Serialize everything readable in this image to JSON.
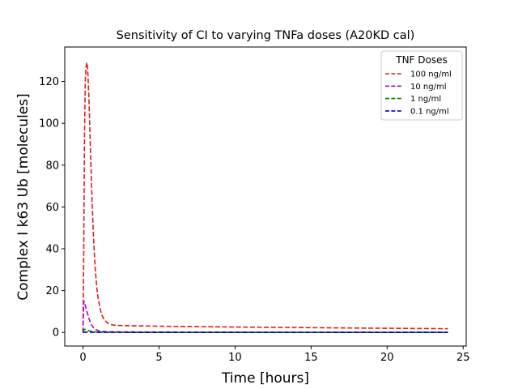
{
  "chart_data": {
    "type": "line",
    "title": "Sensitivity of CI to varying TNFa doses (A20KD cal)",
    "xlabel": "Time [hours]",
    "ylabel": "Complex I k63 Ub [molecules]",
    "xlim": [
      -1.2,
      25.2
    ],
    "ylim": [
      -6.5,
      136.5
    ],
    "xticks": [
      0,
      5,
      10,
      15,
      20,
      25
    ],
    "yticks": [
      0,
      20,
      40,
      60,
      80,
      100,
      120
    ],
    "grid": false,
    "legend": {
      "title": "TNF Doses",
      "placement": "top-right"
    },
    "series": [
      {
        "name": "100 ng/ml",
        "color": "#e31a1c",
        "style": "dashed",
        "x": [
          0,
          0.05,
          0.1,
          0.15,
          0.2,
          0.25,
          0.3,
          0.4,
          0.5,
          0.6,
          0.7,
          0.8,
          0.9,
          1.0,
          1.2,
          1.4,
          1.6,
          1.8,
          2.0,
          2.5,
          3.0,
          4.0,
          5.0,
          6.0,
          8.0,
          10.0,
          12.0,
          15.0,
          18.0,
          20.0,
          22.0,
          24.0
        ],
        "y": [
          0,
          40,
          95,
          120,
          127,
          129,
          127,
          110,
          85,
          62,
          44,
          31,
          22,
          16,
          9,
          6,
          4.6,
          3.9,
          3.5,
          3.3,
          3.2,
          3.1,
          3.0,
          2.9,
          2.8,
          2.6,
          2.5,
          2.3,
          2.1,
          2.0,
          1.9,
          1.8
        ]
      },
      {
        "name": "10 ng/ml",
        "color": "#c000c0",
        "style": "dashed",
        "x": [
          0,
          0.05,
          0.1,
          0.15,
          0.2,
          0.3,
          0.4,
          0.5,
          0.6,
          0.7,
          0.8,
          1.0,
          1.2,
          1.5,
          2.0,
          3.0,
          5.0,
          10.0,
          15.0,
          20.0,
          24.0
        ],
        "y": [
          0,
          15,
          14.5,
          13,
          11.5,
          9,
          6.5,
          4.5,
          3.2,
          2.2,
          1.5,
          0.9,
          0.6,
          0.4,
          0.3,
          0.25,
          0.2,
          0.15,
          0.1,
          0.1,
          0.1
        ]
      },
      {
        "name": "1 ng/ml",
        "color": "#008000",
        "style": "dashed",
        "x": [
          0,
          0.05,
          0.1,
          0.2,
          0.3,
          0.5,
          0.8,
          1.2,
          2.0,
          5.0,
          10.0,
          24.0
        ],
        "y": [
          0,
          1.2,
          1.5,
          1.3,
          1.0,
          0.6,
          0.3,
          0.15,
          0.1,
          0.05,
          0.03,
          0.02
        ]
      },
      {
        "name": "0.1 ng/ml",
        "color": "#0000cc",
        "style": "dashed",
        "x": [
          0,
          0.1,
          0.3,
          1.0,
          5.0,
          24.0
        ],
        "y": [
          0,
          0.15,
          0.1,
          0.05,
          0.02,
          0.01
        ]
      }
    ]
  }
}
